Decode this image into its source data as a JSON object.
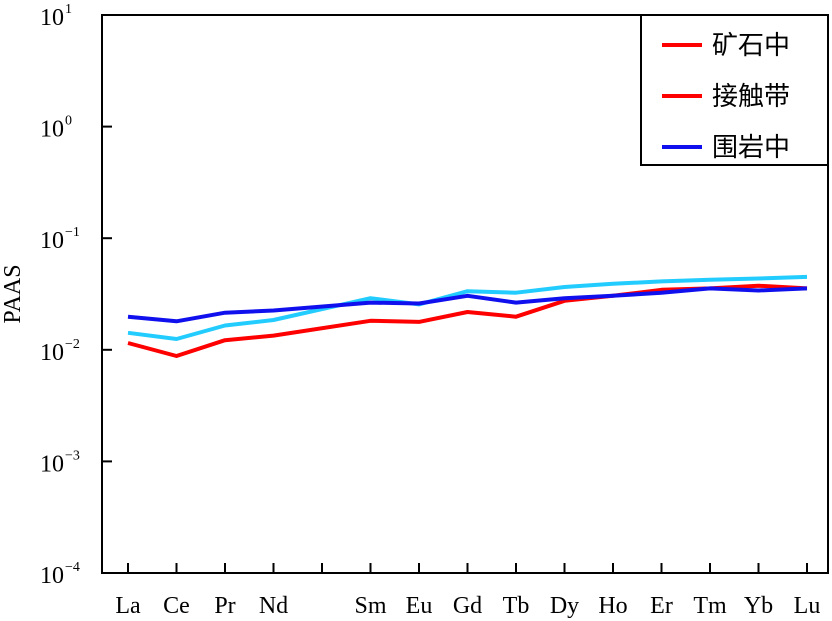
{
  "chart_data": {
    "type": "line",
    "title": "",
    "xlabel": "",
    "ylabel": "PAAS",
    "yscale": "log",
    "ylim": [
      0.0001,
      10
    ],
    "y_ticks": [
      {
        "base": "10",
        "exp": "1",
        "value": 10
      },
      {
        "base": "10",
        "exp": "0",
        "value": 1
      },
      {
        "base": "10",
        "exp": "−1",
        "value": 0.1
      },
      {
        "base": "10",
        "exp": "−2",
        "value": 0.01
      },
      {
        "base": "10",
        "exp": "−3",
        "value": 0.001
      },
      {
        "base": "10",
        "exp": "−4",
        "value": 0.0001
      }
    ],
    "x_ticks": [
      "",
      "",
      "",
      "",
      "",
      "",
      "",
      "",
      "",
      "",
      "",
      "",
      "",
      "",
      ""
    ],
    "categories": [
      "La",
      "Ce",
      "Pr",
      "Nd",
      "",
      "Sm",
      "Eu",
      "Gd",
      "Tb",
      "Dy",
      "Ho",
      "Er",
      "Tm",
      "Yb",
      "Lu"
    ],
    "legend_position": "top-right",
    "grid": false,
    "series": [
      {
        "name": "矿石中",
        "color": "#ff0000",
        "values": [
          0.0115,
          0.0088,
          0.0122,
          0.0134,
          null,
          0.0182,
          0.0178,
          0.0218,
          0.0198,
          0.0275,
          0.0305,
          0.0345,
          0.0355,
          0.0375,
          0.0355
        ]
      },
      {
        "name": "接触带",
        "color": "#22ccff",
        "values": [
          0.0142,
          0.0125,
          0.0165,
          0.0185,
          null,
          0.029,
          0.0255,
          0.0335,
          0.0325,
          0.0365,
          0.039,
          0.041,
          0.0425,
          0.0435,
          0.045
        ]
      },
      {
        "name": "围岩中",
        "color": "#1010ee",
        "values": [
          0.0198,
          0.018,
          0.0215,
          0.0225,
          null,
          0.0265,
          0.026,
          0.0305,
          0.0265,
          0.029,
          0.0305,
          0.0325,
          0.0355,
          0.034,
          0.0355
        ]
      }
    ],
    "legend_swatches": [
      "#ff0000",
      "#ff0000",
      "#1010ee"
    ]
  }
}
